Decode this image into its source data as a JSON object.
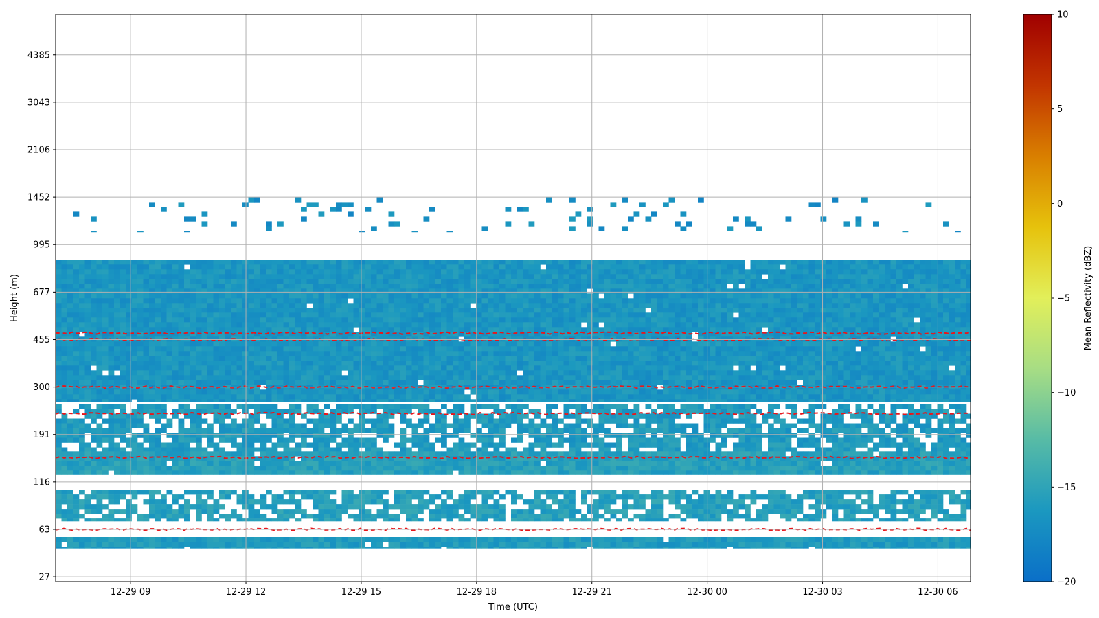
{
  "chart_data": {
    "type": "heatmap",
    "xlabel": "Time (UTC)",
    "ylabel": "Height (m)",
    "colorbar_label": "Mean Reflectivity (dBZ)",
    "x_tick_labels": [
      "12-29 09",
      "12-29 12",
      "12-29 15",
      "12-29 18",
      "12-29 21",
      "12-30 00",
      "12-30 03",
      "12-30 06"
    ],
    "x_tick_hours": [
      9,
      12,
      15,
      18,
      21,
      24,
      27,
      30
    ],
    "x_range_hours": [
      7.05,
      30.85
    ],
    "y_tick_labels": [
      "27",
      "63",
      "116",
      "191",
      "300",
      "455",
      "677",
      "995",
      "1452",
      "2106",
      "3043",
      "4385"
    ],
    "y_range_gate_index": [
      -0.1,
      11.85
    ],
    "colorbar_range": [
      -20,
      10
    ],
    "colorbar_ticks": [
      "10",
      "5",
      "0",
      "−5",
      "−10",
      "−15",
      "−20"
    ],
    "colormap": [
      "#0a6fc8",
      "#1b98c0",
      "#57bba6",
      "#a7dd84",
      "#e2ef5a",
      "#e6c20c",
      "#d97f00",
      "#c23500",
      "#a00000"
    ],
    "contour_color": "#e8161b",
    "grid": true,
    "reflectivity_bands": [
      {
        "height_range_m": [
          260,
          880
        ],
        "dbz": -16.5,
        "coverage": "solid"
      },
      {
        "height_range_m": [
          160,
          255
        ],
        "dbz": -16,
        "coverage": "patchy"
      },
      {
        "height_range_m": [
          125,
          160
        ],
        "dbz": -15.5,
        "coverage": "solid"
      },
      {
        "height_range_m": [
          70,
          105
        ],
        "dbz": -15.5,
        "coverage": "patchy"
      },
      {
        "height_range_m": [
          45,
          55
        ],
        "dbz": -16,
        "coverage": "solid"
      },
      {
        "height_range_m": [
          1100,
          1450
        ],
        "dbz": -17,
        "coverage": "sparse"
      }
    ],
    "contour_lines_m": [
      455,
      480,
      300,
      233,
      150,
      63
    ]
  }
}
